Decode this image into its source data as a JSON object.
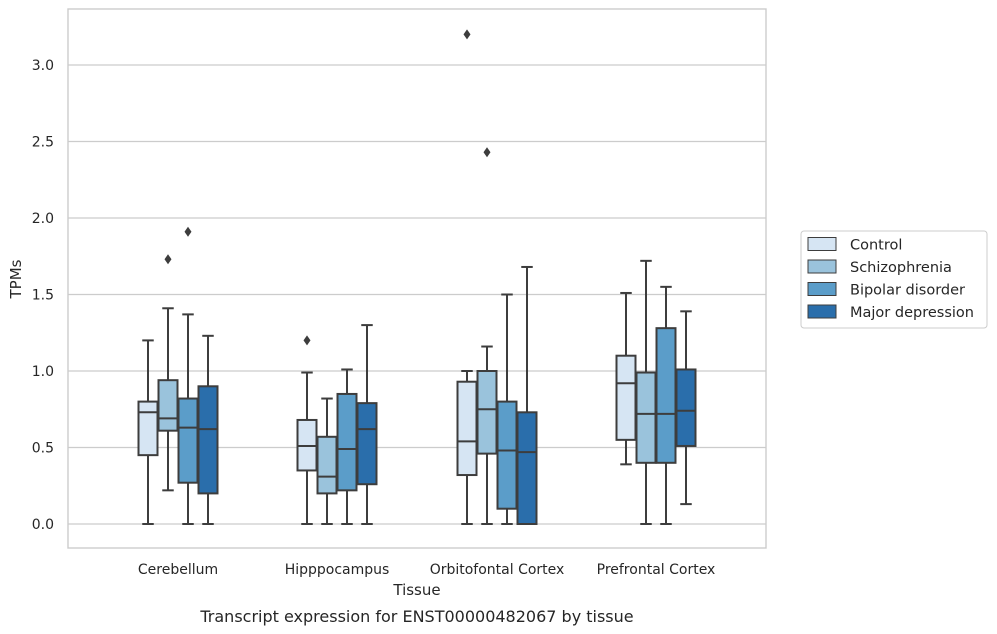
{
  "chart_data": {
    "type": "box",
    "title": "",
    "caption": "Transcript expression for ENST00000482067 by tissue",
    "xlabel": "Tissue",
    "ylabel": "TPMs",
    "ylim": [
      -0.15,
      3.38
    ],
    "yticks": [
      0.0,
      0.5,
      1.0,
      1.5,
      2.0,
      2.5,
      3.0
    ],
    "ytick_labels": [
      "0.0",
      "0.5",
      "1.0",
      "1.5",
      "2.0",
      "2.5",
      "3.0"
    ],
    "grid": "horizontal",
    "legend_position": "right",
    "categories": [
      "Cerebellum",
      "Hipppocampus",
      "Orbitofontal Cortex",
      "Prefrontal Cortex"
    ],
    "series": [
      {
        "name": "Control",
        "color": "#d6e5f3",
        "boxes": [
          {
            "whislo": 0.0,
            "q1": 0.45,
            "med": 0.73,
            "q3": 0.8,
            "whishi": 1.2,
            "fliers": []
          },
          {
            "whislo": 0.0,
            "q1": 0.35,
            "med": 0.51,
            "q3": 0.68,
            "whishi": 0.99,
            "fliers": [
              1.2
            ]
          },
          {
            "whislo": 0.0,
            "q1": 0.32,
            "med": 0.54,
            "q3": 0.93,
            "whishi": 1.0,
            "fliers": [
              3.2
            ]
          },
          {
            "whislo": 0.39,
            "q1": 0.55,
            "med": 0.92,
            "q3": 1.1,
            "whishi": 1.51,
            "fliers": []
          }
        ]
      },
      {
        "name": "Schizophrenia",
        "color": "#9ac3dc",
        "boxes": [
          {
            "whislo": 0.22,
            "q1": 0.61,
            "med": 0.69,
            "q3": 0.94,
            "whishi": 1.41,
            "fliers": [
              1.73
            ]
          },
          {
            "whislo": 0.0,
            "q1": 0.2,
            "med": 0.31,
            "q3": 0.57,
            "whishi": 0.82,
            "fliers": []
          },
          {
            "whislo": 0.0,
            "q1": 0.46,
            "med": 0.75,
            "q3": 1.0,
            "whishi": 1.16,
            "fliers": [
              2.43
            ]
          },
          {
            "whislo": 0.0,
            "q1": 0.4,
            "med": 0.72,
            "q3": 0.99,
            "whishi": 1.72,
            "fliers": []
          }
        ]
      },
      {
        "name": "Bipolar disorder",
        "color": "#5b9dc9",
        "boxes": [
          {
            "whislo": 0.0,
            "q1": 0.27,
            "med": 0.63,
            "q3": 0.82,
            "whishi": 1.37,
            "fliers": [
              1.91
            ]
          },
          {
            "whislo": 0.0,
            "q1": 0.22,
            "med": 0.49,
            "q3": 0.85,
            "whishi": 1.01,
            "fliers": []
          },
          {
            "whislo": 0.0,
            "q1": 0.1,
            "med": 0.48,
            "q3": 0.8,
            "whishi": 1.5,
            "fliers": []
          },
          {
            "whislo": 0.0,
            "q1": 0.4,
            "med": 0.72,
            "q3": 1.28,
            "whishi": 1.55,
            "fliers": []
          }
        ]
      },
      {
        "name": "Major depression",
        "color": "#2a6eab",
        "boxes": [
          {
            "whislo": 0.0,
            "q1": 0.2,
            "med": 0.62,
            "q3": 0.9,
            "whishi": 1.23,
            "fliers": []
          },
          {
            "whislo": 0.0,
            "q1": 0.26,
            "med": 0.62,
            "q3": 0.79,
            "whishi": 1.3,
            "fliers": []
          },
          {
            "whislo": 0.0,
            "q1": 0.0,
            "med": 0.47,
            "q3": 0.73,
            "whishi": 1.68,
            "fliers": []
          },
          {
            "whislo": 0.13,
            "q1": 0.51,
            "med": 0.74,
            "q3": 1.01,
            "whishi": 1.39,
            "fliers": []
          }
        ]
      }
    ]
  }
}
